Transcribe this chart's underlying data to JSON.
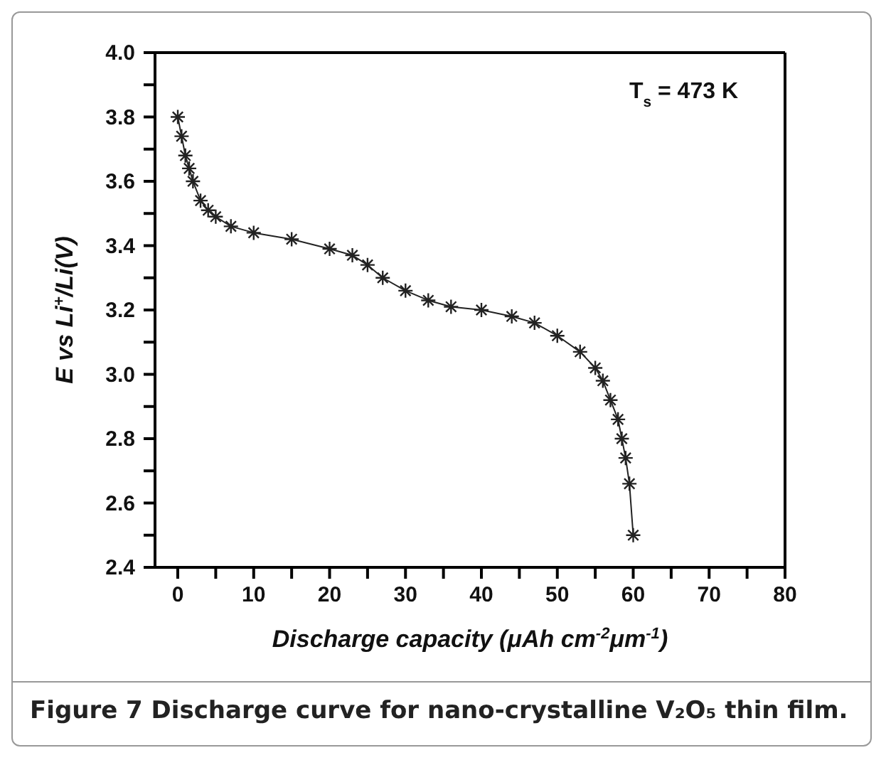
{
  "chart_data": {
    "type": "line",
    "xlabel": "Discharge capacity (μAh cm$^{-2}$μm$^{-1}$)",
    "ylabel": "E vs Li$^{+}$/Li(V)",
    "annotations": [
      "T$_{s}$ = 473 K",
      "Figure 7 Discharge curve for nano-crystalline V₂O₅ thin film."
    ],
    "x": [
      0,
      0.5,
      1,
      1.5,
      2,
      3,
      4,
      5,
      7,
      10,
      15,
      20,
      23,
      25,
      27,
      30,
      33,
      36,
      40,
      44,
      47,
      50,
      53,
      55,
      56,
      57,
      58,
      58.5,
      59,
      59.5,
      60
    ],
    "series": [
      {
        "color": "#222222",
        "values": [
          3.8,
          3.74,
          3.68,
          3.64,
          3.6,
          3.54,
          3.51,
          3.49,
          3.46,
          3.44,
          3.42,
          3.39,
          3.37,
          3.34,
          3.3,
          3.26,
          3.23,
          3.21,
          3.2,
          3.18,
          3.16,
          3.12,
          3.07,
          3.02,
          2.98,
          2.92,
          2.86,
          2.8,
          2.74,
          2.66,
          2.5
        ]
      }
    ],
    "xlim": [
      -3,
      80
    ],
    "xticks": [
      0,
      {
        "value": 5,
        "label": null
      },
      10,
      {
        "value": 15,
        "label": null
      },
      20,
      {
        "value": 25,
        "label": null
      },
      30,
      {
        "value": 35,
        "label": null
      },
      40,
      {
        "value": 45,
        "label": null
      },
      50,
      {
        "value": 55,
        "label": null
      },
      60,
      {
        "value": 65,
        "label": null
      },
      70,
      {
        "value": 75,
        "label": null
      },
      80
    ],
    "ylim": [
      2.4,
      4.0
    ],
    "yticks": [
      {
        "value": 2.4,
        "label": "2.4"
      },
      {
        "value": 2.5,
        "label": null
      },
      {
        "value": 2.6,
        "label": "2.6"
      },
      {
        "value": 2.7,
        "label": null
      },
      {
        "value": 2.8,
        "label": "2.8"
      },
      {
        "value": 2.9,
        "label": null
      },
      {
        "value": 3.0,
        "label": "3.0"
      },
      {
        "value": 3.1,
        "label": null
      },
      {
        "value": 3.2,
        "label": "3.2"
      },
      {
        "value": 3.3,
        "label": null
      },
      {
        "value": 3.4,
        "label": "3.4"
      },
      {
        "value": 3.5,
        "label": null
      },
      {
        "value": 3.6,
        "label": "3.6"
      },
      {
        "value": 3.7,
        "label": null
      },
      {
        "value": 3.8,
        "label": "3.8"
      },
      {
        "value": 3.9,
        "label": null
      },
      {
        "value": 4.0,
        "label": "4.0"
      }
    ],
    "grid": false,
    "legend": false,
    "marker": "cross",
    "line_style": "solid"
  }
}
